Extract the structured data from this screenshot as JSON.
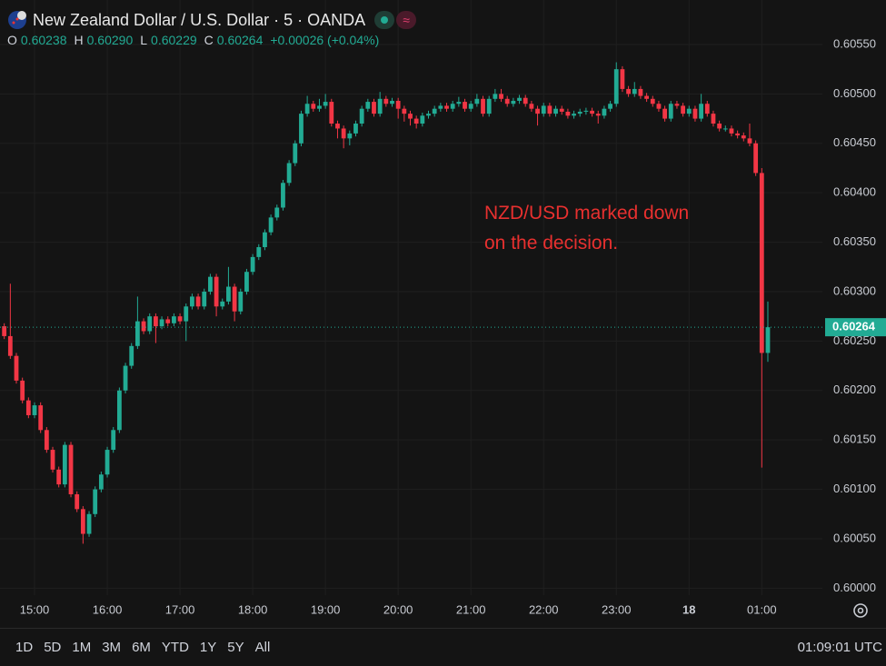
{
  "chart_data": {
    "type": "candlestick",
    "title": "New Zealand Dollar / U.S. Dollar · 5 · OANDA",
    "legend": [
      {
        "label": "O",
        "value": "0.60238"
      },
      {
        "label": "H",
        "value": "0.60290"
      },
      {
        "label": "L",
        "value": "0.60229"
      },
      {
        "label": "C",
        "value": "0.60264"
      }
    ],
    "change": "+0.00026 (+0.04%)",
    "annotation": [
      "NZD/USD marked down",
      "on the decision."
    ],
    "up_color": "#22ab94",
    "down_color": "#f23645",
    "grid": true,
    "xlim": [
      -0.7,
      135
    ],
    "xticks": [
      {
        "value": 5,
        "label": "15:00"
      },
      {
        "value": 17,
        "label": "16:00"
      },
      {
        "value": 29,
        "label": "17:00"
      },
      {
        "value": 41,
        "label": "18:00"
      },
      {
        "value": 53,
        "label": "19:00"
      },
      {
        "value": 65,
        "label": "20:00"
      },
      {
        "value": 77,
        "label": "21:00"
      },
      {
        "value": 89,
        "label": "22:00"
      },
      {
        "value": 101,
        "label": "23:00"
      },
      {
        "value": 113,
        "label": "18"
      },
      {
        "value": 125,
        "label": "01:00"
      }
    ],
    "ylim": [
      0.59993,
      0.60595
    ],
    "yticks": [
      {
        "value": 0.6,
        "label": "0.60000"
      },
      {
        "value": 0.6005,
        "label": "0.60050"
      },
      {
        "value": 0.601,
        "label": "0.60100"
      },
      {
        "value": 0.6015,
        "label": "0.60150"
      },
      {
        "value": 0.602,
        "label": "0.60200"
      },
      {
        "value": 0.6025,
        "label": "0.60250"
      },
      {
        "value": 0.603,
        "label": "0.60300"
      },
      {
        "value": 0.6035,
        "label": "0.60350"
      },
      {
        "value": 0.604,
        "label": "0.60400"
      },
      {
        "value": 0.6045,
        "label": "0.60450"
      },
      {
        "value": 0.605,
        "label": "0.60500"
      },
      {
        "value": 0.6055,
        "label": "0.60550"
      }
    ],
    "open": [
      0.60265,
      0.60255,
      0.60235,
      0.6021,
      0.6019,
      0.60175,
      0.60185,
      0.6016,
      0.6014,
      0.6012,
      0.60105,
      0.60145,
      0.60095,
      0.6008,
      0.60055,
      0.60075,
      0.601,
      0.60115,
      0.6014,
      0.6016,
      0.602,
      0.60225,
      0.60245,
      0.6027,
      0.6026,
      0.60275,
      0.60265,
      0.60272,
      0.60268,
      0.60275,
      0.6027,
      0.60285,
      0.60295,
      0.60285,
      0.603,
      0.60315,
      0.60285,
      0.6029,
      0.60305,
      0.6028,
      0.603,
      0.6032,
      0.60335,
      0.60345,
      0.6036,
      0.60375,
      0.60385,
      0.6041,
      0.6043,
      0.6045,
      0.6048,
      0.6049,
      0.60485,
      0.60488,
      0.60492,
      0.6047,
      0.60465,
      0.60455,
      0.6046,
      0.6047,
      0.60485,
      0.60492,
      0.6048,
      0.60495,
      0.6049,
      0.60493,
      0.60485,
      0.6048,
      0.60475,
      0.6047,
      0.60478,
      0.6048,
      0.60485,
      0.60488,
      0.60485,
      0.6049,
      0.60492,
      0.60485,
      0.6049,
      0.60495,
      0.6048,
      0.60495,
      0.605,
      0.60495,
      0.6049,
      0.60493,
      0.60496,
      0.6049,
      0.60485,
      0.6048,
      0.60488,
      0.6048,
      0.60485,
      0.60482,
      0.60478,
      0.6048,
      0.60482,
      0.60483,
      0.6048,
      0.60478,
      0.60485,
      0.6049,
      0.60525,
      0.60505,
      0.605,
      0.60505,
      0.60498,
      0.60495,
      0.6049,
      0.60485,
      0.60475,
      0.6049,
      0.60488,
      0.6048,
      0.60485,
      0.60475,
      0.6049,
      0.6048,
      0.6047,
      0.60465,
      0.60465,
      0.6046,
      0.60458,
      0.60455,
      0.6045,
      0.6042,
      0.60238
    ],
    "high": [
      0.60268,
      0.60308,
      0.60238,
      0.60213,
      0.60193,
      0.60188,
      0.60188,
      0.60163,
      0.60143,
      0.60123,
      0.60148,
      0.60148,
      0.60098,
      0.60083,
      0.60078,
      0.60103,
      0.60118,
      0.60143,
      0.60163,
      0.60203,
      0.60228,
      0.60248,
      0.60295,
      0.60273,
      0.60278,
      0.60278,
      0.60275,
      0.60275,
      0.60278,
      0.60278,
      0.60288,
      0.60298,
      0.60298,
      0.60303,
      0.60318,
      0.60318,
      0.60293,
      0.60325,
      0.60308,
      0.60303,
      0.60323,
      0.60338,
      0.60348,
      0.60363,
      0.60378,
      0.60388,
      0.60413,
      0.60433,
      0.60453,
      0.60483,
      0.60498,
      0.60493,
      0.60495,
      0.605,
      0.60495,
      0.60473,
      0.60468,
      0.60463,
      0.60473,
      0.60488,
      0.60495,
      0.60495,
      0.60502,
      0.60498,
      0.60496,
      0.60496,
      0.60488,
      0.60483,
      0.60478,
      0.60481,
      0.60483,
      0.60488,
      0.60491,
      0.60491,
      0.60493,
      0.60497,
      0.60495,
      0.60493,
      0.605,
      0.60498,
      0.60498,
      0.60505,
      0.60505,
      0.60498,
      0.60496,
      0.60499,
      0.60499,
      0.60493,
      0.60488,
      0.60491,
      0.60491,
      0.60488,
      0.60488,
      0.60485,
      0.60483,
      0.60485,
      0.60486,
      0.60486,
      0.60483,
      0.60488,
      0.60493,
      0.60532,
      0.60528,
      0.60508,
      0.60512,
      0.60508,
      0.60501,
      0.60498,
      0.60493,
      0.60488,
      0.60493,
      0.60493,
      0.60491,
      0.60488,
      0.60488,
      0.605,
      0.60493,
      0.60483,
      0.60473,
      0.60468,
      0.60468,
      0.60463,
      0.60461,
      0.6047,
      0.60453,
      0.60425,
      0.6029
    ],
    "low": [
      0.60252,
      0.60232,
      0.60207,
      0.60187,
      0.60172,
      0.60172,
      0.60157,
      0.60137,
      0.60117,
      0.60102,
      0.60102,
      0.60092,
      0.60077,
      0.60045,
      0.60052,
      0.60072,
      0.60097,
      0.60112,
      0.60137,
      0.60157,
      0.60197,
      0.60222,
      0.60242,
      0.60257,
      0.60257,
      0.60248,
      0.60262,
      0.60265,
      0.60265,
      0.60267,
      0.6025,
      0.60282,
      0.60282,
      0.60282,
      0.60297,
      0.60275,
      0.60282,
      0.60287,
      0.6027,
      0.60277,
      0.60297,
      0.60317,
      0.60332,
      0.60342,
      0.60357,
      0.60372,
      0.60382,
      0.60407,
      0.60427,
      0.60447,
      0.60477,
      0.60482,
      0.60482,
      0.60485,
      0.60467,
      0.60455,
      0.60445,
      0.60448,
      0.60457,
      0.60467,
      0.60482,
      0.60477,
      0.60477,
      0.60487,
      0.60487,
      0.60475,
      0.60472,
      0.60468,
      0.60465,
      0.60467,
      0.60475,
      0.60477,
      0.60482,
      0.60482,
      0.60482,
      0.60487,
      0.60482,
      0.60482,
      0.60487,
      0.60477,
      0.60477,
      0.60492,
      0.60492,
      0.60487,
      0.60487,
      0.6049,
      0.60487,
      0.60482,
      0.60468,
      0.60477,
      0.60477,
      0.60477,
      0.60479,
      0.60475,
      0.60475,
      0.60477,
      0.60479,
      0.60477,
      0.6047,
      0.60475,
      0.60482,
      0.60487,
      0.60502,
      0.60497,
      0.60497,
      0.60495,
      0.60492,
      0.60487,
      0.60482,
      0.60472,
      0.60472,
      0.60485,
      0.60477,
      0.60477,
      0.60472,
      0.60472,
      0.60477,
      0.60467,
      0.60462,
      0.60462,
      0.60457,
      0.60455,
      0.60452,
      0.60447,
      0.60417,
      0.60122,
      0.60229
    ],
    "close": [
      0.60255,
      0.60235,
      0.6021,
      0.6019,
      0.60175,
      0.60185,
      0.6016,
      0.6014,
      0.6012,
      0.60105,
      0.60145,
      0.60095,
      0.6008,
      0.60055,
      0.60075,
      0.601,
      0.60115,
      0.6014,
      0.6016,
      0.602,
      0.60225,
      0.60245,
      0.6027,
      0.6026,
      0.60275,
      0.60265,
      0.60272,
      0.60268,
      0.60275,
      0.6027,
      0.60285,
      0.60295,
      0.60285,
      0.603,
      0.60315,
      0.60285,
      0.6029,
      0.60305,
      0.6028,
      0.603,
      0.6032,
      0.60335,
      0.60345,
      0.6036,
      0.60375,
      0.60385,
      0.6041,
      0.6043,
      0.6045,
      0.6048,
      0.6049,
      0.60485,
      0.60488,
      0.60492,
      0.6047,
      0.60465,
      0.60455,
      0.6046,
      0.6047,
      0.60485,
      0.60492,
      0.6048,
      0.60495,
      0.6049,
      0.60493,
      0.60485,
      0.6048,
      0.60475,
      0.6047,
      0.60478,
      0.6048,
      0.60485,
      0.60488,
      0.60485,
      0.6049,
      0.60492,
      0.60485,
      0.6049,
      0.60495,
      0.6048,
      0.60495,
      0.605,
      0.60495,
      0.6049,
      0.60493,
      0.60496,
      0.6049,
      0.60485,
      0.6048,
      0.60488,
      0.6048,
      0.60485,
      0.60482,
      0.60478,
      0.6048,
      0.60482,
      0.60483,
      0.6048,
      0.60478,
      0.60485,
      0.6049,
      0.60525,
      0.60505,
      0.605,
      0.60505,
      0.60498,
      0.60495,
      0.6049,
      0.60485,
      0.60475,
      0.6049,
      0.60488,
      0.6048,
      0.60485,
      0.60475,
      0.6049,
      0.6048,
      0.6047,
      0.60465,
      0.60465,
      0.6046,
      0.60458,
      0.60455,
      0.6045,
      0.6042,
      0.60238,
      0.60264
    ]
  },
  "toolbar": {
    "ranges": [
      "1D",
      "5D",
      "1M",
      "3M",
      "6M",
      "YTD",
      "1Y",
      "5Y",
      "All"
    ],
    "clock": "01:09:01 UTC"
  }
}
